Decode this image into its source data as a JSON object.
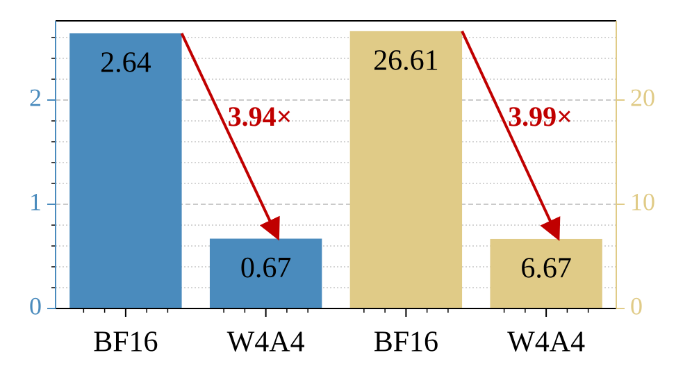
{
  "chart_data": {
    "type": "bar",
    "categories": [
      "BF16",
      "W4A4",
      "BF16",
      "W4A4"
    ],
    "series": [
      {
        "color": "#4a8bbd",
        "values": [
          2.64,
          0.67,
          null,
          null
        ]
      },
      {
        "color": "#e0cb87",
        "axis": "y2",
        "values": [
          null,
          null,
          26.61,
          6.67
        ]
      }
    ],
    "ylim": [
      0,
      2.76
    ],
    "yticks": [
      0,
      1,
      2
    ],
    "yminorticks": [
      0.2,
      0.4,
      0.6,
      0.8,
      1.2,
      1.4,
      1.6,
      1.8,
      2.2,
      2.4,
      2.6
    ],
    "y2lim": [
      0,
      27.6
    ],
    "y2ticks": [
      0,
      10,
      20
    ],
    "grid": true,
    "annotations": [
      {
        "text": "3.94×",
        "color": "#c00000"
      },
      {
        "text": "3.99×",
        "color": "#c00000"
      }
    ]
  }
}
